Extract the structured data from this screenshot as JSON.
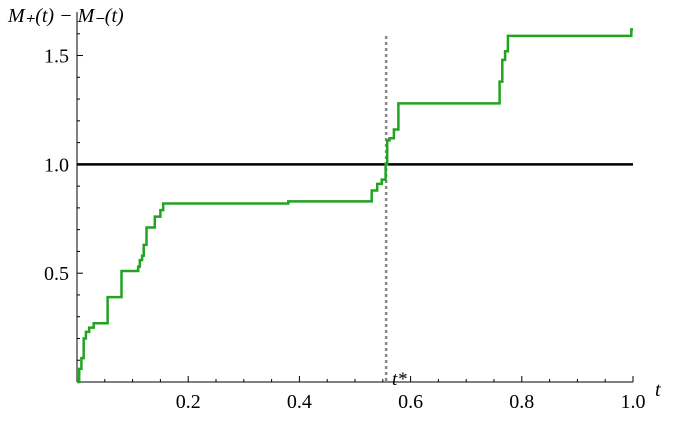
{
  "chart_data": {
    "type": "line",
    "title": "",
    "ylabel": "M₊(t) − M₋(t)",
    "xlabel": "t",
    "xlim": [
      0,
      1.0
    ],
    "ylim": [
      0,
      1.7
    ],
    "x_ticks": [
      {
        "value": 0.2,
        "label": "0.2"
      },
      {
        "value": 0.4,
        "label": "0.4"
      },
      {
        "value": 0.6,
        "label": "0.6"
      },
      {
        "value": 0.8,
        "label": "0.8"
      },
      {
        "value": 1.0,
        "label": "1.0"
      }
    ],
    "y_ticks": [
      {
        "value": 0.5,
        "label": "0.5"
      },
      {
        "value": 1.0,
        "label": "1.0"
      },
      {
        "value": 1.5,
        "label": "1.5"
      }
    ],
    "grid": false,
    "reference_line": {
      "y": 1.0,
      "color": "#000000"
    },
    "vertical_marker": {
      "x": 0.556,
      "label": "t*",
      "color": "#888888"
    },
    "series": [
      {
        "color": "#22a322",
        "step": true,
        "x": [
          0.0,
          0.004,
          0.008,
          0.012,
          0.016,
          0.022,
          0.03,
          0.055,
          0.08,
          0.11,
          0.113,
          0.117,
          0.12,
          0.125,
          0.14,
          0.15,
          0.155,
          0.38,
          0.53,
          0.54,
          0.548,
          0.555,
          0.558,
          0.562,
          0.57,
          0.578,
          0.76,
          0.765,
          0.77,
          0.775,
          0.99,
          0.997,
          1.0
        ],
        "y": [
          0.0,
          0.06,
          0.11,
          0.2,
          0.23,
          0.25,
          0.27,
          0.39,
          0.51,
          0.53,
          0.56,
          0.58,
          0.63,
          0.71,
          0.76,
          0.79,
          0.82,
          0.83,
          0.88,
          0.91,
          0.93,
          1.0,
          1.11,
          1.12,
          1.16,
          1.28,
          1.38,
          1.48,
          1.52,
          1.59,
          1.59,
          1.62,
          1.62
        ]
      }
    ]
  }
}
